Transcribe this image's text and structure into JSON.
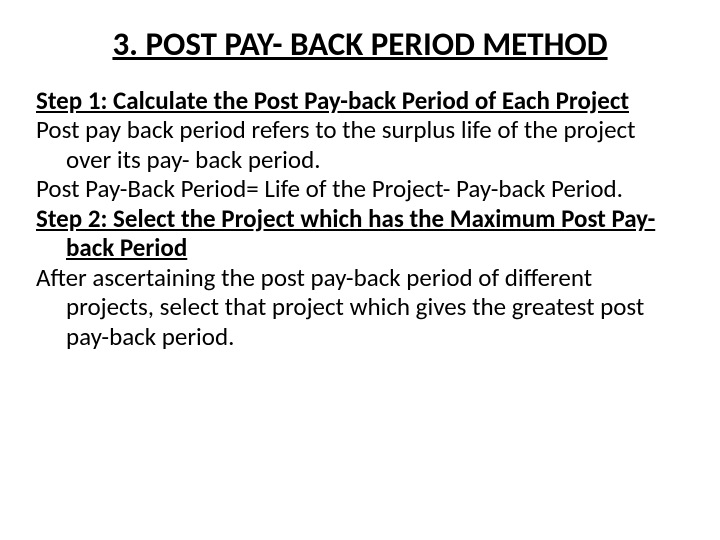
{
  "title_fontsize": 33,
  "body_fontsize": 25,
  "text_color": "#000000",
  "background_color": "#ffffff",
  "title": "3. POST PAY- BACK PERIOD METHOD",
  "step1_heading": "Step 1: Calculate the Post Pay-back Period of Each Project",
  "step1_line1": "Post pay back period refers to the surplus life of the project over its pay- back period.",
  "step1_line2": "Post Pay-Back Period= Life of the Project- Pay-back Period.",
  "step2_heading": "Step 2: Select the Project which has the Maximum Post Pay-back Period",
  "step2_line1": "After ascertaining the post pay-back period of different projects, select that project which gives the greatest post pay-back period."
}
